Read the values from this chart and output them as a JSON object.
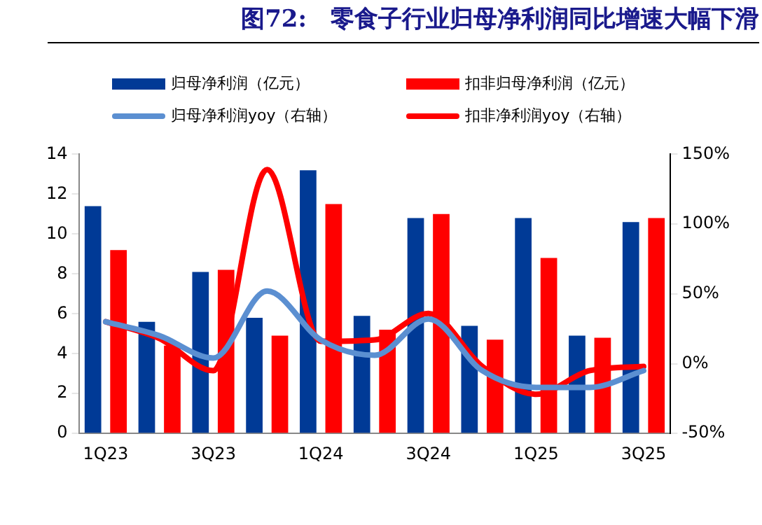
{
  "chart_data": {
    "type": "bar",
    "title": "图72:　零食子行业归母净利润同比增速大幅下滑",
    "categories": [
      "1Q23",
      null,
      "3Q23",
      null,
      "1Q24",
      null,
      "3Q24",
      null,
      "1Q25",
      null,
      "3Q25"
    ],
    "series": [
      {
        "name": "归母净利润（亿元）",
        "color": "#003a96",
        "values": [
          11.4,
          5.6,
          8.1,
          5.8,
          13.2,
          5.9,
          10.8,
          5.4,
          10.8,
          4.9,
          10.6
        ]
      },
      {
        "name": "扣非归母净利润（亿元）",
        "color": "#ff0000",
        "values": [
          9.2,
          4.4,
          8.2,
          4.9,
          11.5,
          5.2,
          11.0,
          4.7,
          8.8,
          4.8,
          10.8
        ]
      },
      {
        "name": "归母净利润yoy（右轴）",
        "type": "line",
        "axis": "y2",
        "color": "#5b8fd1",
        "values": [
          30,
          20,
          4,
          52,
          17,
          6,
          32,
          -5,
          -17,
          -17,
          -5
        ]
      },
      {
        "name": "扣非净利润yoy（右轴）",
        "type": "line",
        "axis": "y2",
        "color": "#ff0000",
        "values": [
          30,
          18,
          -5,
          139,
          16,
          17,
          36,
          -2,
          -22,
          -5,
          -2
        ]
      }
    ],
    "ylim": [
      0,
      14
    ],
    "yticks": [
      0,
      2,
      4,
      6,
      8,
      10,
      12,
      14
    ],
    "y2lim": [
      -50,
      150
    ],
    "y2ticks": [
      {
        "value": -50,
        "label": "-50%"
      },
      {
        "value": 0,
        "label": "0%"
      },
      {
        "value": 50,
        "label": "50%"
      },
      {
        "value": 100,
        "label": "100%"
      },
      {
        "value": 150,
        "label": "150%"
      }
    ],
    "legend": "top",
    "grid": false
  }
}
